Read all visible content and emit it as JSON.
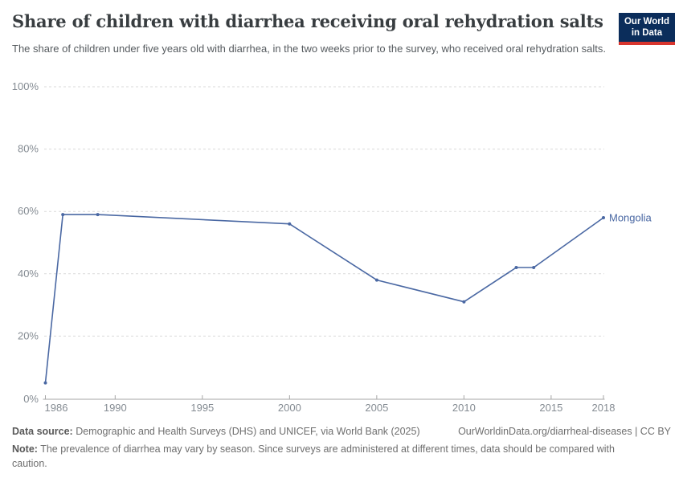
{
  "header": {
    "title": "Share of children with diarrhea receiving oral rehydration salts",
    "subtitle": "The share of children under five years old with diarrhea, in the two weeks prior to the survey, who received oral rehydration salts.",
    "logo": {
      "line1": "Our World",
      "line2": "in Data"
    }
  },
  "chart_data": {
    "type": "line",
    "title": "Share of children with diarrhea receiving oral rehydration salts",
    "series": [
      {
        "name": "Mongolia",
        "color": "#4a68a3",
        "points": [
          [
            1986,
            5
          ],
          [
            1987,
            59
          ],
          [
            1989,
            59
          ],
          [
            2000,
            56
          ],
          [
            2005,
            38
          ],
          [
            2010,
            31
          ],
          [
            2013,
            42
          ],
          [
            2014,
            42
          ],
          [
            2018,
            58
          ]
        ]
      }
    ],
    "x_ticks": [
      1986,
      1990,
      1995,
      2000,
      2005,
      2010,
      2015,
      2018
    ],
    "y_ticks": [
      0,
      20,
      40,
      60,
      80,
      100
    ],
    "y_suffix": "%",
    "xlim": [
      1986,
      2018
    ],
    "ylim": [
      0,
      100
    ],
    "grid": "horizontal-dashed",
    "legend": "line-end-label"
  },
  "colors": {
    "line_blue": "#4a68a3",
    "grid": "#dadada",
    "axis": "#a6a6a6",
    "tick_text": "#858c93",
    "logo_bg": "#0b2d5b",
    "logo_accent": "#d8352e"
  },
  "footer": {
    "datasource_label": "Data source:",
    "datasource_text": " Demographic and Health Surveys (DHS) and UNICEF, via World Bank (2025)",
    "citation": "OurWorldinData.org/diarrheal-diseases | CC BY",
    "note_label": "Note:",
    "note_text": " The prevalence of diarrhea may vary by season. Since surveys are administered at different times, data should be compared with caution."
  }
}
